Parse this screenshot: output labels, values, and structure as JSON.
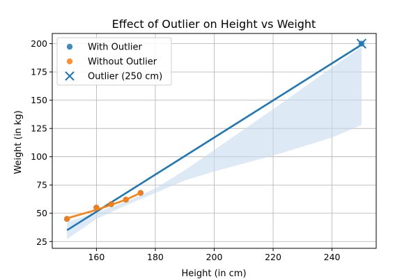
{
  "colors": {
    "with_outlier": "#1f77b4",
    "without_outlier": "#ff7f0e",
    "confidence_band": "#c6dbef",
    "grid": "#b0b0b0"
  },
  "chart_data": {
    "type": "scatter",
    "title": "Effect of Outlier on Height vs Weight",
    "xlabel": "Height (in cm)",
    "ylabel": "Weight (in kg)",
    "xlim": [
      145,
      255
    ],
    "ylim": [
      19,
      209
    ],
    "xticks": [
      160,
      180,
      200,
      220,
      240
    ],
    "yticks": [
      25,
      50,
      75,
      100,
      125,
      150,
      175,
      200
    ],
    "grid": true,
    "legend_position": "top-left",
    "series": [
      {
        "name": "With Outlier",
        "points": [
          [
            150,
            45
          ],
          [
            160,
            55
          ],
          [
            165,
            58
          ],
          [
            170,
            62
          ],
          [
            175,
            68
          ],
          [
            250,
            200
          ]
        ],
        "regression": {
          "line": [
            [
              150,
              35
            ],
            [
              250,
              199
            ]
          ],
          "band_upper": [
            [
              150,
              42
            ],
            [
              160,
              51
            ],
            [
              170,
              60
            ],
            [
              180,
              72
            ],
            [
              190,
              88
            ],
            [
              200,
              106
            ],
            [
              220,
              142
            ],
            [
              240,
              179
            ],
            [
              250,
              197
            ]
          ],
          "band_lower": [
            [
              150,
              27
            ],
            [
              160,
              45
            ],
            [
              170,
              57
            ],
            [
              180,
              68
            ],
            [
              190,
              79
            ],
            [
              200,
              87
            ],
            [
              220,
              101
            ],
            [
              240,
              117
            ],
            [
              250,
              128
            ]
          ]
        }
      },
      {
        "name": "Without Outlier",
        "points": [
          [
            150,
            45
          ],
          [
            160,
            55
          ],
          [
            165,
            58
          ],
          [
            170,
            62
          ],
          [
            175,
            68
          ]
        ],
        "regression": {
          "line": [
            [
              150,
              45.5
            ],
            [
              160,
              53
            ],
            [
              165,
              57.5
            ],
            [
              170,
              62
            ],
            [
              175,
              68
            ]
          ]
        }
      },
      {
        "name": "Outlier (250 cm)",
        "marker": "x",
        "points": [
          [
            250,
            200
          ]
        ]
      }
    ]
  }
}
